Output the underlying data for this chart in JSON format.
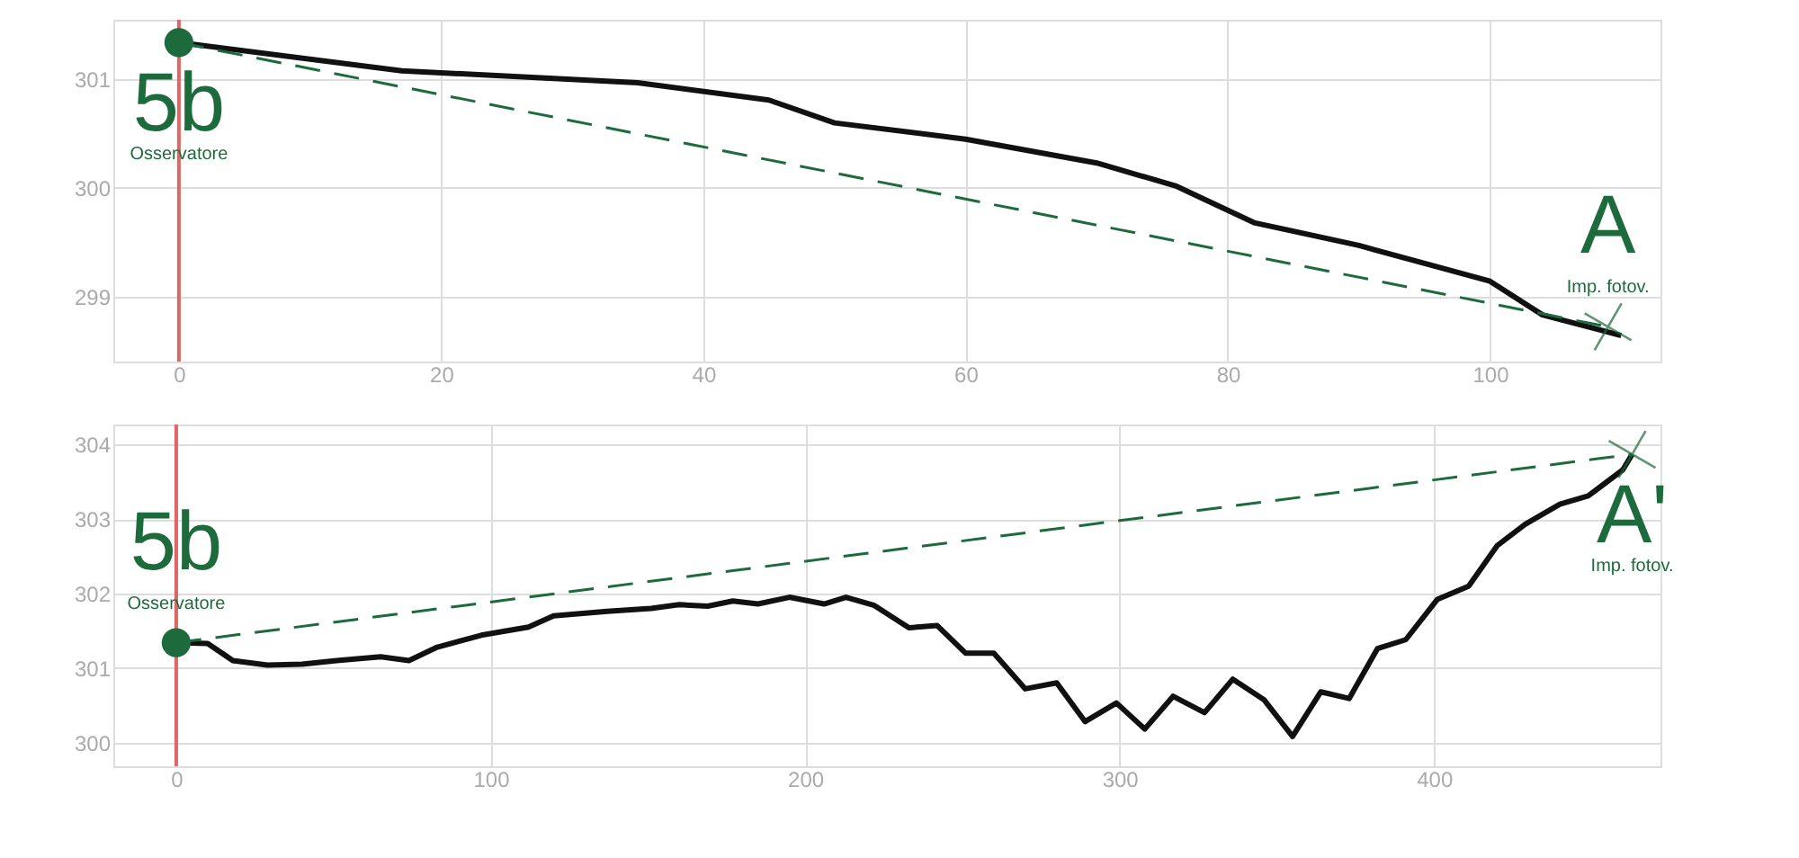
{
  "chart_data": [
    {
      "type": "line",
      "xlim": [
        -5,
        113
      ],
      "xticks": [
        0,
        20,
        40,
        60,
        80,
        100
      ],
      "ylim": [
        298.4,
        301.55
      ],
      "yticks": [
        299,
        300,
        301
      ],
      "grid": true,
      "ref_lines": [
        {
          "axis": "x",
          "value": 0,
          "color": "#e06666"
        }
      ],
      "series": [
        {
          "type": "line",
          "color": "#111111",
          "line_style": "solid",
          "x": [
            0,
            17,
            35,
            45,
            50,
            60,
            70,
            76,
            82,
            90,
            100,
            104,
            110
          ],
          "values": [
            301.34,
            301.08,
            300.97,
            300.81,
            300.6,
            300.45,
            300.23,
            300.02,
            299.68,
            299.47,
            299.14,
            298.83,
            298.64
          ]
        },
        {
          "type": "line",
          "color": "#1d6b3c",
          "line_style": "dashed",
          "x": [
            0,
            109
          ],
          "values": [
            301.34,
            298.72
          ]
        },
        {
          "type": "scatter",
          "color": "#1d6b3c",
          "marker": "circle",
          "x": [
            0
          ],
          "values": [
            301.34
          ]
        },
        {
          "type": "scatter",
          "color": "#1d6b3c",
          "marker": "cross",
          "x": [
            109
          ],
          "values": [
            298.72
          ]
        }
      ],
      "annotations": [
        {
          "text": "5b",
          "x": 0,
          "y": 301.34
        },
        "Osservatore",
        {
          "text": "A",
          "x": 109,
          "y": 298.72
        },
        "Imp. fotov."
      ]
    },
    {
      "type": "line",
      "xlim": [
        -20,
        472
      ],
      "xticks": [
        0,
        100,
        200,
        300,
        400
      ],
      "ylim": [
        299.68,
        304.27
      ],
      "yticks": [
        300,
        301,
        302,
        303,
        304
      ],
      "grid": true,
      "ref_lines": [
        {
          "axis": "x",
          "value": 0,
          "color": "#e06666"
        }
      ],
      "series": [
        {
          "type": "line",
          "color": "#111111",
          "line_style": "solid",
          "x": [
            0,
            10,
            18,
            29,
            40,
            51,
            65,
            74,
            83,
            97,
            112,
            120,
            137,
            151,
            160,
            169,
            177,
            185,
            195,
            206,
            213,
            222,
            233,
            242,
            251,
            260,
            270,
            280,
            289,
            299,
            308,
            317,
            327,
            336,
            346,
            355,
            364,
            373,
            382,
            391,
            401,
            411,
            420,
            429,
            440,
            449,
            460,
            463
          ],
          "values": [
            301.34,
            301.33,
            301.1,
            301.04,
            301.05,
            301.1,
            301.15,
            301.1,
            301.28,
            301.44,
            301.55,
            301.7,
            301.76,
            301.8,
            301.85,
            301.83,
            301.9,
            301.86,
            301.95,
            301.86,
            301.95,
            301.84,
            301.54,
            301.57,
            301.2,
            301.2,
            300.72,
            300.8,
            300.28,
            300.53,
            300.18,
            300.62,
            300.4,
            300.85,
            300.57,
            300.08,
            300.68,
            300.59,
            301.26,
            301.38,
            301.92,
            302.1,
            302.64,
            302.93,
            303.2,
            303.31,
            303.66,
            303.87
          ]
        },
        {
          "type": "line",
          "color": "#1d6b3c",
          "line_style": "dashed",
          "x": [
            0,
            463
          ],
          "values": [
            301.34,
            303.87
          ]
        },
        {
          "type": "scatter",
          "color": "#1d6b3c",
          "marker": "circle",
          "x": [
            0
          ],
          "values": [
            301.34
          ]
        },
        {
          "type": "scatter",
          "color": "#1d6b3c",
          "marker": "cross",
          "x": [
            463
          ],
          "values": [
            303.87
          ]
        }
      ],
      "annotations": [
        {
          "text": "5b",
          "x": 0,
          "y": 301.34
        },
        "Osservatore",
        {
          "text": "A'",
          "x": 463,
          "y": 303.87
        },
        "Imp. fotov."
      ]
    }
  ]
}
